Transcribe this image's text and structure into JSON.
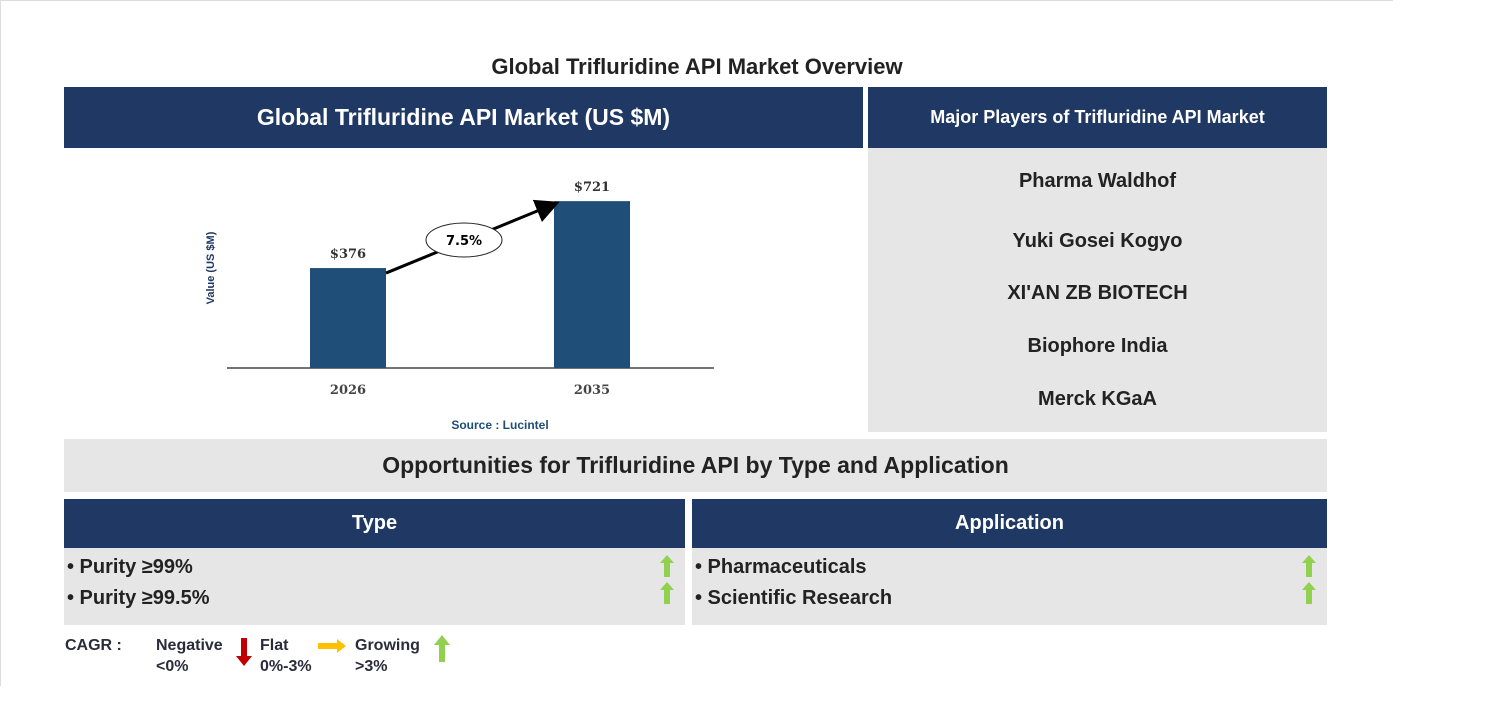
{
  "title": "Global Trifluridine API Market Overview",
  "market_header": "Global Trifluridine API Market (US $M)",
  "players_header": "Major Players of Trifluridine API Market",
  "players": [
    "Pharma Waldhof",
    "Yuki Gosei Kogyo",
    "XI'AN ZB BIOTECH",
    "Biophore India",
    "Merck KGaA"
  ],
  "chart_data": {
    "type": "bar",
    "categories": [
      "2026",
      "2035"
    ],
    "values": [
      376,
      721
    ],
    "value_labels": [
      "$376",
      "$721"
    ],
    "ylabel": "Value (US $M)",
    "cagr_label": "7.5%",
    "source": "Source : Lucintel",
    "bar_color": "#1f4e79",
    "grid": false
  },
  "opportunities_title": "Opportunities for Trifluridine API by Type and Application",
  "type": {
    "header": "Type",
    "items": [
      {
        "label": "• Purity ≥99%",
        "trend": "growing"
      },
      {
        "label": "• Purity ≥99.5%",
        "trend": "growing"
      }
    ]
  },
  "application": {
    "header": "Application",
    "items": [
      {
        "label": "• Pharmaceuticals",
        "trend": "growing"
      },
      {
        "label": "• Scientific Research",
        "trend": "growing"
      }
    ]
  },
  "legend": {
    "cagr": "CAGR :",
    "negative": "Negative",
    "negative_range": "<0%",
    "flat": "Flat",
    "flat_range": "0%-3%",
    "growing": "Growing",
    "growing_range": ">3%",
    "colors": {
      "negative": "#c00000",
      "flat": "#ffc000",
      "growing": "#92d050"
    }
  }
}
